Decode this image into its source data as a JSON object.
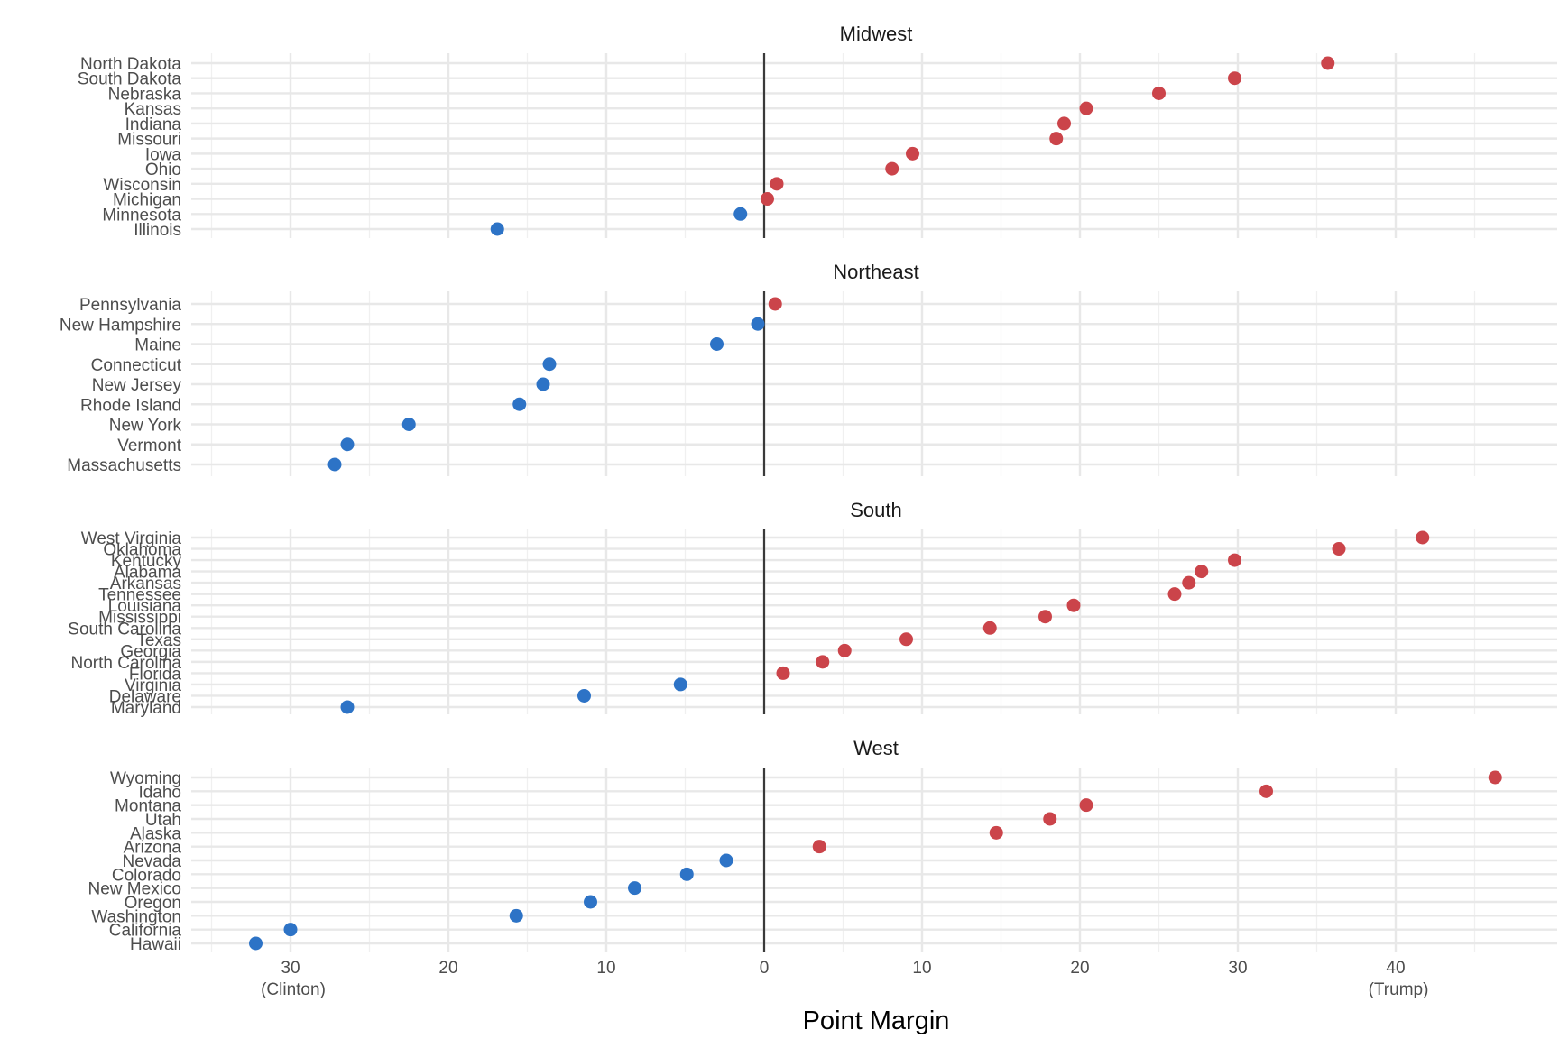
{
  "chart_data": {
    "type": "scatter",
    "xlabel": "Point Margin",
    "x_ticks": [
      {
        "value": -30,
        "label": "30",
        "sublabel": "(Clinton)"
      },
      {
        "value": -20,
        "label": "20",
        "sublabel": ""
      },
      {
        "value": -10,
        "label": "10",
        "sublabel": ""
      },
      {
        "value": 0,
        "label": "0",
        "sublabel": ""
      },
      {
        "value": 10,
        "label": "10",
        "sublabel": ""
      },
      {
        "value": 20,
        "label": "20",
        "sublabel": ""
      },
      {
        "value": 30,
        "label": "30",
        "sublabel": ""
      },
      {
        "value": 40,
        "label": "40",
        "sublabel": "(Trump)"
      }
    ],
    "xlim": [
      -35,
      50
    ],
    "grid": true,
    "colors": {
      "trump": "#cb444a",
      "clinton": "#2d73c6"
    },
    "panels": [
      {
        "title": "Midwest",
        "points": [
          {
            "state": "North Dakota",
            "margin": 35.7
          },
          {
            "state": "South Dakota",
            "margin": 29.8
          },
          {
            "state": "Nebraska",
            "margin": 25.0
          },
          {
            "state": "Kansas",
            "margin": 20.4
          },
          {
            "state": "Indiana",
            "margin": 19.0
          },
          {
            "state": "Missouri",
            "margin": 18.5
          },
          {
            "state": "Iowa",
            "margin": 9.4
          },
          {
            "state": "Ohio",
            "margin": 8.1
          },
          {
            "state": "Wisconsin",
            "margin": 0.8
          },
          {
            "state": "Michigan",
            "margin": 0.2
          },
          {
            "state": "Minnesota",
            "margin": -1.5
          },
          {
            "state": "Illinois",
            "margin": -16.9
          }
        ]
      },
      {
        "title": "Northeast",
        "points": [
          {
            "state": "Pennsylvania",
            "margin": 0.7
          },
          {
            "state": "New Hampshire",
            "margin": -0.4
          },
          {
            "state": "Maine",
            "margin": -3.0
          },
          {
            "state": "Connecticut",
            "margin": -13.6
          },
          {
            "state": "New Jersey",
            "margin": -14.0
          },
          {
            "state": "Rhode Island",
            "margin": -15.5
          },
          {
            "state": "New York",
            "margin": -22.5
          },
          {
            "state": "Vermont",
            "margin": -26.4
          },
          {
            "state": "Massachusetts",
            "margin": -27.2
          }
        ]
      },
      {
        "title": "South",
        "points": [
          {
            "state": "West Virginia",
            "margin": 41.7
          },
          {
            "state": "Oklahoma",
            "margin": 36.4
          },
          {
            "state": "Kentucky",
            "margin": 29.8
          },
          {
            "state": "Alabama",
            "margin": 27.7
          },
          {
            "state": "Arkansas",
            "margin": 26.9
          },
          {
            "state": "Tennessee",
            "margin": 26.0
          },
          {
            "state": "Louisiana",
            "margin": 19.6
          },
          {
            "state": "Mississippi",
            "margin": 17.8
          },
          {
            "state": "South Carolina",
            "margin": 14.3
          },
          {
            "state": "Texas",
            "margin": 9.0
          },
          {
            "state": "Georgia",
            "margin": 5.1
          },
          {
            "state": "North Carolina",
            "margin": 3.7
          },
          {
            "state": "Florida",
            "margin": 1.2
          },
          {
            "state": "Virginia",
            "margin": -5.3
          },
          {
            "state": "Delaware",
            "margin": -11.4
          },
          {
            "state": "Maryland",
            "margin": -26.4
          }
        ]
      },
      {
        "title": "West",
        "points": [
          {
            "state": "Wyoming",
            "margin": 46.3
          },
          {
            "state": "Idaho",
            "margin": 31.8
          },
          {
            "state": "Montana",
            "margin": 20.4
          },
          {
            "state": "Utah",
            "margin": 18.1
          },
          {
            "state": "Alaska",
            "margin": 14.7
          },
          {
            "state": "Arizona",
            "margin": 3.5
          },
          {
            "state": "Nevada",
            "margin": -2.4
          },
          {
            "state": "Colorado",
            "margin": -4.9
          },
          {
            "state": "New Mexico",
            "margin": -8.2
          },
          {
            "state": "Oregon",
            "margin": -11.0
          },
          {
            "state": "Washington",
            "margin": -15.7
          },
          {
            "state": "California",
            "margin": -30.0
          },
          {
            "state": "Hawaii",
            "margin": -32.2
          }
        ]
      }
    ]
  }
}
